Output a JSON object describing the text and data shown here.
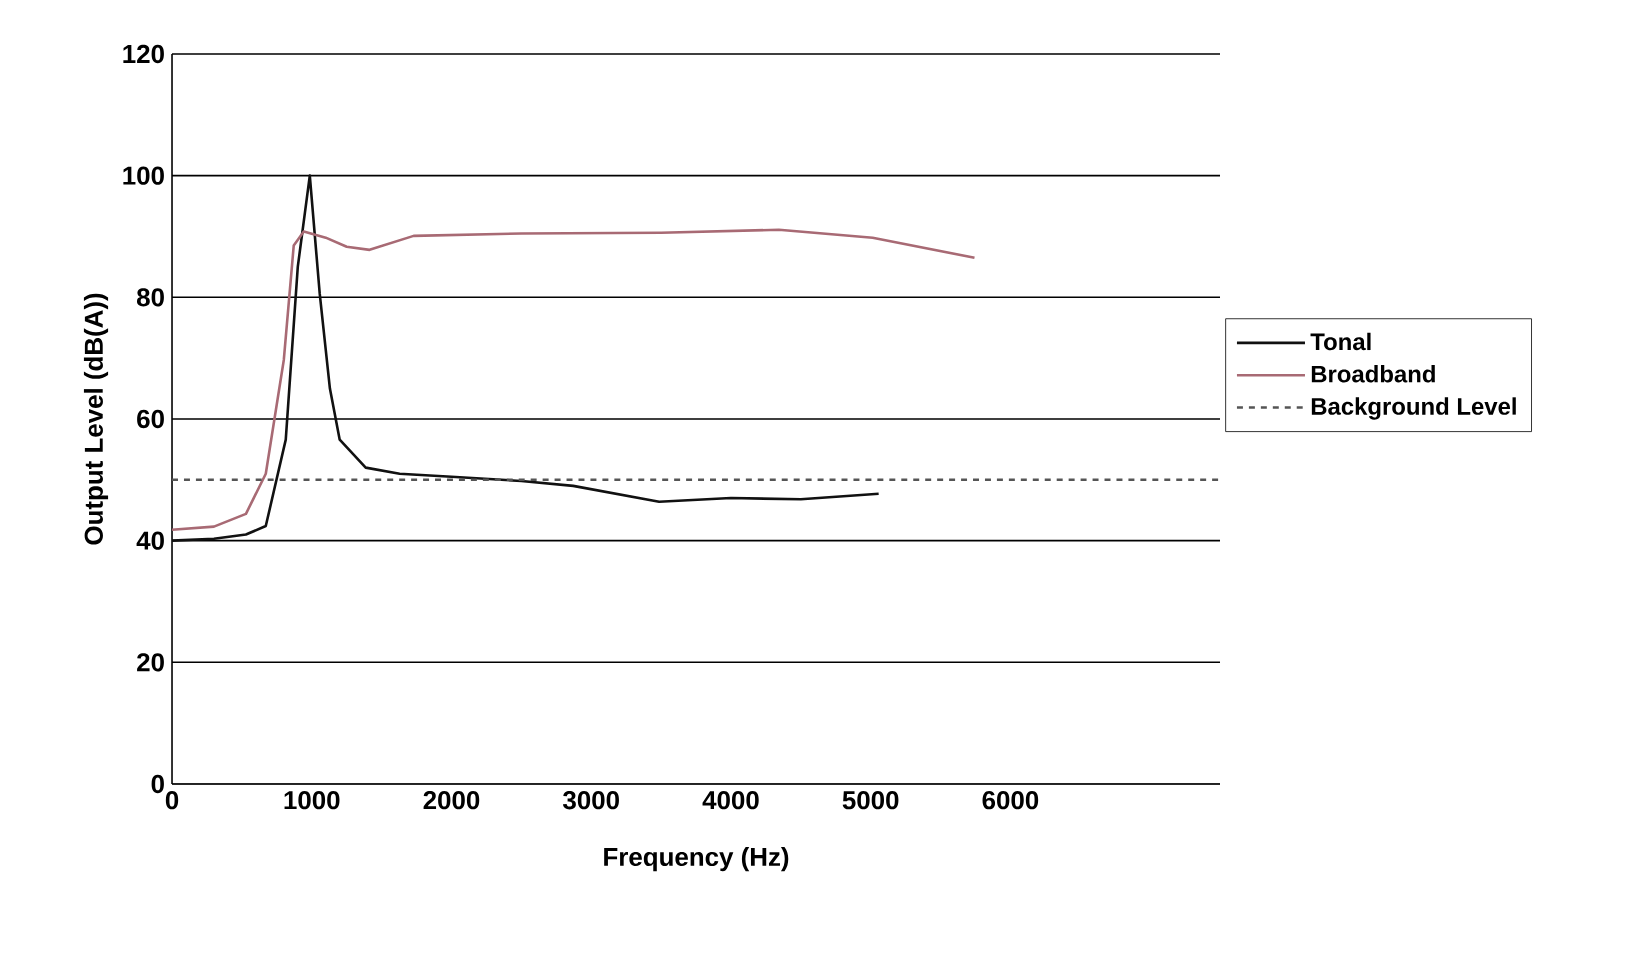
{
  "chart_data": {
    "type": "line",
    "xlabel": "Frequency (Hz)",
    "ylabel": "Output Level (dB(A))",
    "xlim": [
      0,
      7500
    ],
    "xticks": [
      0,
      1000,
      2000,
      3000,
      4000,
      5000,
      6000
    ],
    "ylim": [
      0,
      120
    ],
    "yticks": [
      0,
      20,
      40,
      60,
      80,
      100,
      120
    ],
    "grid": "y",
    "legend": "right",
    "line_style": "solid",
    "series": [
      {
        "name": "Tonal",
        "color": "#111111",
        "x": [
          0,
          300,
          529,
          671,
          814,
          900,
          986,
          1057,
          1130,
          1200,
          1386,
          1629,
          2000,
          2500,
          2871,
          3486,
          4000,
          4500,
          5057
        ],
        "values": [
          40,
          40.3,
          41,
          42.4,
          56.6,
          85,
          100,
          80.6,
          65,
          56.6,
          52,
          51,
          50.5,
          49.8,
          49,
          46.4,
          47,
          46.8,
          47.7
        ]
      },
      {
        "name": "Broadband",
        "color": "#a86a74",
        "x": [
          0,
          300,
          529,
          671,
          800,
          871,
          943,
          1100,
          1250,
          1414,
          1729,
          2500,
          3500,
          4343,
          5014,
          5743
        ],
        "values": [
          41.8,
          42.3,
          44.4,
          51,
          69.7,
          88.5,
          90.8,
          89.8,
          88.3,
          87.8,
          90.1,
          90.5,
          90.6,
          91.1,
          89.8,
          86.5
        ]
      },
      {
        "name": "Background Level",
        "color": "#555555",
        "line_style": "dashed",
        "x": [
          0,
          7500
        ],
        "values": [
          50,
          50
        ]
      }
    ]
  }
}
